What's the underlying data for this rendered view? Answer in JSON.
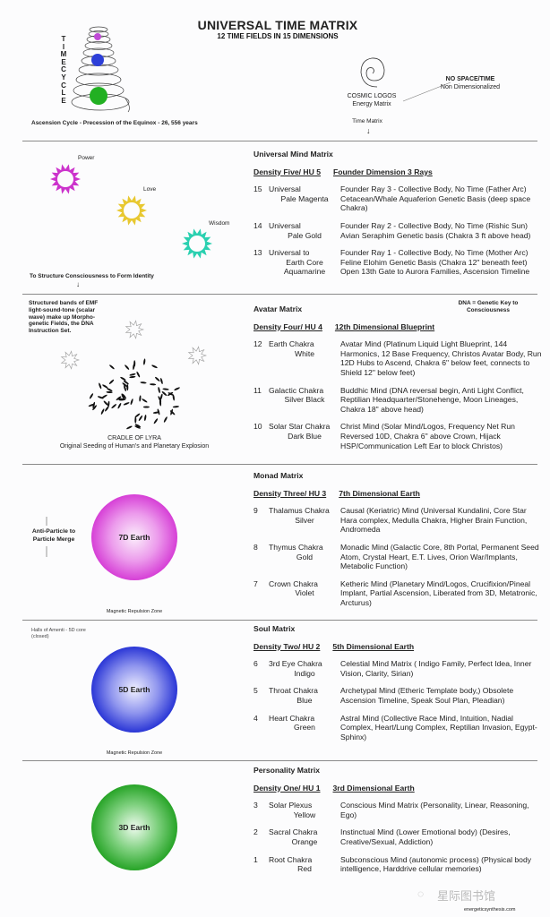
{
  "header": {
    "title": "UNIVERSAL TIME MATRIX",
    "subtitle": "12 TIME FIELDS IN 15 DIMENSIONS",
    "timecycle_label": "TIMECYCLE",
    "ascension_caption": "Ascension Cycle - Precession of the Equinox - 26, 556 years",
    "cosmic_logos": "COSMIC LOGOS",
    "energy_matrix": "Energy Matrix",
    "no_space_time": "NO SPACE/TIME",
    "non_dimensionalized": "Non Dimensionalized",
    "time_matrix": "Time Matrix"
  },
  "left": {
    "power": "Power",
    "love": "Love",
    "wisdom": "Wisdom",
    "structure_note": "To Structure Consciousness to Form Identity",
    "emf_note": [
      "Structured bands of EMF",
      "light-sound-tone (scalar",
      "wave) make up Morpho-",
      "genetic Fields, the DNA",
      "Instruction Set."
    ],
    "lyra_title": "CRADLE OF LYRA",
    "lyra_subtitle": "Original Seeding of Human's and Planetary Explosion",
    "anti_particle": [
      "Anti-Particle to",
      "Particle Merge"
    ],
    "earth7": "7D Earth",
    "earth5": "5D Earth",
    "earth3": "3D Earth",
    "magnetic_zone": "Magnetic Repulsion Zone",
    "halls_amenti": [
      "Halls of Amenti - 5D core",
      "(closed)"
    ]
  },
  "colors": {
    "power": "#cc33cc",
    "love": "#e8c830",
    "wisdom": "#2ad0b0",
    "earth7": "#d63fd6",
    "earth5": "#2a36d6",
    "earth3": "#27a427"
  },
  "dna_note": [
    "DNA = Genetic Key to",
    "Consciousness"
  ],
  "sections": [
    {
      "heading": "Universal Mind Matrix",
      "density": "Density Five/ HU 5",
      "density_title": "Founder Dimension 3 Rays",
      "rows": [
        {
          "num": "15",
          "name": [
            "Universal",
            "Pale Magenta"
          ],
          "desc": "Founder Ray 3 - Collective Body, No Time (Father Arc) Cetacean/Whale Aquaferion Genetic Basis  (deep space Chakra)"
        },
        {
          "num": "14",
          "name": [
            "Universal",
            "Pale Gold"
          ],
          "desc": "Founder Ray 2 - Collective Body, No Time (Rishic Sun) Avian Seraphim Genetic basis (Chakra 3 ft above head)"
        },
        {
          "num": "13",
          "name": [
            "Universal to",
            "Earth Core",
            "Aquamarine"
          ],
          "desc": "Founder Ray 1 - Collective Body, No Time (Mother Arc) Feline Elohim Genetic Basis (Chakra 12\" beneath feet) Open 13th Gate to Aurora Families, Ascension Timeline"
        }
      ]
    },
    {
      "heading": "Avatar Matrix",
      "density": "Density Four/ HU 4",
      "density_title": "12th Dimensional Blueprint",
      "rows": [
        {
          "num": "12",
          "name": [
            "Earth Chakra",
            "White"
          ],
          "desc": "Avatar Mind  (Platinum Liquid Light Blueprint, 144 Harmonics, 12 Base Frequency, Christos Avatar Body, Run 12D Hubs to Ascend, Chakra 6\" below feet, connects to Shield 12\" below feet)"
        },
        {
          "num": "11",
          "name": [
            "Galactic Chakra",
            "Silver Black"
          ],
          "desc": "Buddhic Mind (DNA reversal begin, Anti Light Conflict, Reptilian Headquarter/Stonehenge, Moon Lineages, Chakra 18\" above head)"
        },
        {
          "num": "10",
          "name": [
            "Solar Star Chakra",
            "Dark Blue"
          ],
          "desc": "Christ Mind (Solar Mind/Logos, Frequency Net Run Reversed 10D, Chakra 6\" above Crown, Hijack HSP/Communication Left Ear to block Christos)"
        }
      ]
    },
    {
      "heading": "Monad Matrix",
      "density": "Density Three/ HU 3",
      "density_title": "7th Dimensional Earth",
      "rows": [
        {
          "num": "9",
          "name": [
            "Thalamus Chakra",
            "Silver"
          ],
          "desc": "Causal (Keriatric) Mind  (Universal Kundalini, Core Star Hara complex, Medulla Chakra, Higher Brain Function, Andromeda"
        },
        {
          "num": "8",
          "name": [
            "Thymus Chakra",
            "Gold"
          ],
          "desc": "Monadic Mind (Galactic Core, 8th Portal, Permanent Seed Atom, Crystal Heart, E.T. Lives, Orion War/Implants, Metabolic Function)"
        },
        {
          "num": "7",
          "name": [
            "Crown Chakra",
            "Violet"
          ],
          "desc": "Ketheric Mind (Planetary Mind/Logos, Crucifixion/Pineal Implant, Partial Ascension, Liberated from 3D, Metatronic, Arcturus)"
        }
      ]
    },
    {
      "heading": "Soul Matrix",
      "density": "Density Two/ HU 2",
      "density_title": "5th Dimensional Earth",
      "rows": [
        {
          "num": "6",
          "name": [
            "3rd Eye Chakra",
            "Indigo"
          ],
          "desc": "Celestial Mind Matrix ( Indigo Family, Perfect Idea, Inner Vision, Clarity, Sirian)"
        },
        {
          "num": "5",
          "name": [
            "Throat Chakra",
            "Blue"
          ],
          "desc": "Archetypal Mind (Etheric Template body,) Obsolete Ascension Timeline, Speak Soul Plan, Pleadian)"
        },
        {
          "num": "4",
          "name": [
            "Heart Chakra",
            "Green"
          ],
          "desc": "Astral Mind (Collective Race Mind, Intuition, Nadial Complex, Heart/Lung Complex, Reptilian Invasion, Egypt-Sphinx)"
        }
      ]
    },
    {
      "heading": "Personality Matrix",
      "density": "Density One/ HU 1",
      "density_title": "3rd Dimensional Earth",
      "rows": [
        {
          "num": "3",
          "name": [
            "Solar Plexus",
            "Yellow"
          ],
          "desc": "Conscious Mind Matrix (Personality, Linear, Reasoning, Ego)"
        },
        {
          "num": "2",
          "name": [
            "Sacral Chakra",
            "Orange"
          ],
          "desc": "Instinctual Mind (Lower Emotional body) (Desires, Creative/Sexual, Addiction)"
        },
        {
          "num": "1",
          "name": [
            "Root Chakra",
            "Red"
          ],
          "desc": "Subconscious Mind (autonomic process) (Physical body intelligence, Harddrive cellular memories)"
        }
      ]
    }
  ],
  "footer": {
    "watermark": "星际图书馆",
    "site": "energeticsynthesis.com"
  }
}
